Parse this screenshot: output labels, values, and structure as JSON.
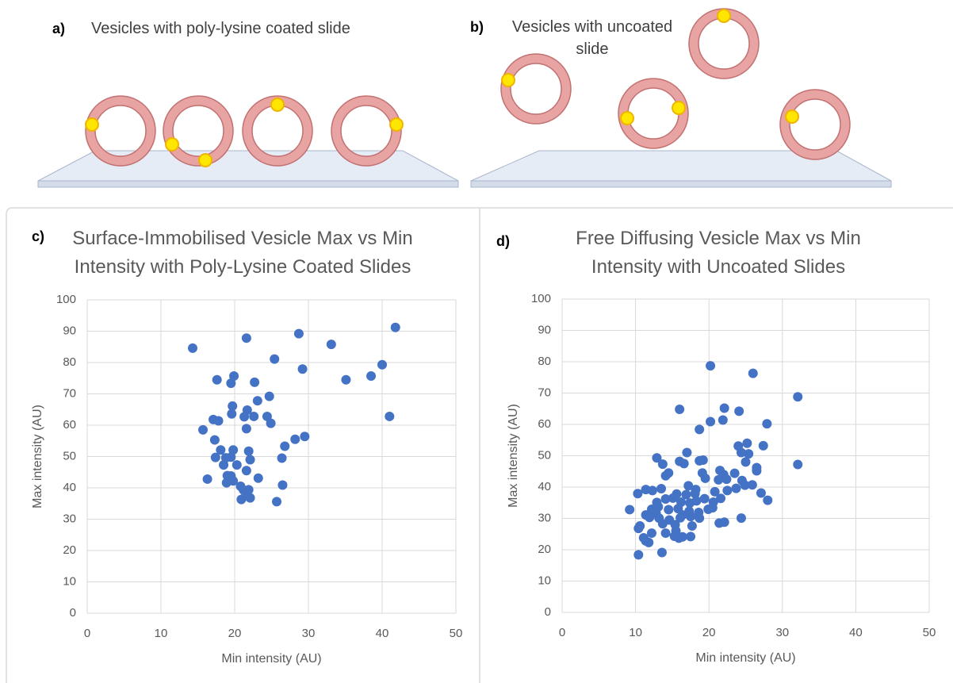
{
  "diagrams": [
    {
      "label": "a)",
      "caption": [
        "Vesicles with poly-lysine coated slide"
      ]
    },
    {
      "label": "b)",
      "caption": [
        "Vesicles with uncoated",
        "slide"
      ]
    }
  ],
  "chart_data": [
    {
      "type": "scatter",
      "panel_label": "c)",
      "title": [
        "Surface-Immobilised Vesicle Max vs Min",
        "Intensity with Poly-Lysine Coated Slides"
      ],
      "x_label": "Min intensity (AU)",
      "y_label": "Max intensity (AU)",
      "xlim": [
        0,
        50
      ],
      "ylim": [
        0,
        100
      ],
      "xticks": [
        0,
        10,
        20,
        30,
        40,
        50
      ],
      "yticks": [
        0,
        10,
        20,
        30,
        40,
        50,
        60,
        70,
        80,
        90,
        100
      ],
      "grid": true,
      "color": "#4472c4",
      "x": [
        14.3,
        21.6,
        28.7,
        33.1,
        41.8,
        25.4,
        29.2,
        40,
        38.5,
        35.1,
        17.6,
        19.9,
        22.7,
        19.5,
        24.7,
        23.1,
        19.7,
        21.7,
        19.6,
        21.3,
        22.6,
        24.4,
        41,
        17.1,
        17.8,
        24.9,
        21.6,
        15.7,
        29.5,
        28.2,
        17.3,
        26.8,
        18.1,
        19.8,
        21.9,
        17.4,
        18.8,
        19.5,
        22.1,
        26.4,
        18.5,
        20.3,
        21.6,
        19,
        19.5,
        16.3,
        18.9,
        19.8,
        23.2,
        20.8,
        21.2,
        21.9,
        26.5,
        20.9,
        22.1,
        25.7,
        21.5
      ],
      "values": [
        84.6,
        87.8,
        89.2,
        85.8,
        91.2,
        81.1,
        77.9,
        79.3,
        75.7,
        74.5,
        74.5,
        75.7,
        73.7,
        73.4,
        69.2,
        67.8,
        66.1,
        64.8,
        63.6,
        62.7,
        62.8,
        62.8,
        62.8,
        61.8,
        61.4,
        60.6,
        58.9,
        58.5,
        56.4,
        55.5,
        55.3,
        53.3,
        52.1,
        52.1,
        51.7,
        49.7,
        49.6,
        49.8,
        49,
        49.5,
        47.3,
        47.3,
        45.5,
        43.9,
        43.8,
        42.8,
        41.6,
        42.2,
        43.1,
        40.5,
        39.3,
        39.4,
        40.9,
        36.3,
        36.8,
        35.6,
        37.4
      ]
    },
    {
      "type": "scatter",
      "panel_label": "d)",
      "title": [
        "Free Diffusing Vesicle Max vs Min",
        "Intensity with Uncoated Slides"
      ],
      "x_label": "Min intensity (AU)",
      "y_label": "Max intensity (AU)",
      "xlim": [
        0,
        50
      ],
      "ylim": [
        0,
        100
      ],
      "xticks": [
        0,
        10,
        20,
        30,
        40,
        50
      ],
      "yticks": [
        0,
        10,
        20,
        30,
        40,
        50,
        60,
        70,
        80,
        90,
        100
      ],
      "grid": true,
      "color": "#4472c4",
      "x": [
        20.2,
        26,
        32.1,
        16,
        22.1,
        24.1,
        21.9,
        20.2,
        27.9,
        18.7,
        25.2,
        24,
        27.4,
        24.4,
        25.4,
        17,
        12.9,
        16,
        18.7,
        19.2,
        25,
        16.6,
        13.7,
        32.1,
        26.5,
        14.5,
        19.1,
        21.5,
        26.5,
        22,
        23.5,
        22.4,
        14.1,
        19.5,
        21.3,
        24.5,
        24.9,
        25.9,
        27.1,
        11.4,
        12.3,
        10.3,
        13.5,
        15.6,
        16.9,
        18.1,
        20.8,
        22.5,
        23.7,
        28,
        14.1,
        15.1,
        16.2,
        17.4,
        18.3,
        19.4,
        20.6,
        21.6,
        12.2,
        13.1,
        11.4,
        12.8,
        14.5,
        15.8,
        17.3,
        18.6,
        20.5,
        9.2,
        11.9,
        13.2,
        14.6,
        16.1,
        17.5,
        18.7,
        21.4,
        22.1,
        24.4,
        13.7,
        15.4,
        17.7,
        10.4,
        10.6,
        12.2,
        14.1,
        15.3,
        15.9,
        16.4,
        17.5,
        11.1,
        11.4,
        11.8,
        10.4,
        13.6,
        15.5,
        19.9,
        16.4,
        12.9,
        18.2,
        17.2
      ],
      "values": [
        78.7,
        76.3,
        68.8,
        64.8,
        65.2,
        64.2,
        61.4,
        60.9,
        60.2,
        58.4,
        54,
        53.1,
        53.2,
        51,
        50.6,
        51,
        49.3,
        48.2,
        48.4,
        48.6,
        48,
        47.5,
        47.3,
        47.2,
        46.2,
        44.5,
        44.5,
        45.3,
        45.2,
        44,
        44.4,
        42.5,
        43.6,
        42.8,
        42.3,
        42.1,
        40.6,
        40.7,
        38.1,
        39.2,
        38.9,
        37.9,
        39.5,
        37.8,
        37.6,
        37.9,
        38.5,
        38.9,
        39.6,
        35.8,
        36.2,
        36.5,
        35.2,
        34.9,
        35.6,
        36.3,
        35.2,
        36.4,
        32.9,
        33.7,
        31.1,
        31.6,
        32.8,
        33.1,
        32.3,
        31.9,
        33.4,
        32.8,
        30.3,
        30.1,
        29.5,
        30.2,
        30.6,
        30.1,
        28.5,
        28.8,
        30.1,
        28.3,
        28,
        27.6,
        26.8,
        27.6,
        25.3,
        25.3,
        24.3,
        23.7,
        24.1,
        24.2,
        23.8,
        22.8,
        22.3,
        18.4,
        19.1,
        26,
        32.9,
        31.1,
        35.1,
        39.2,
        40.4
      ]
    }
  ]
}
